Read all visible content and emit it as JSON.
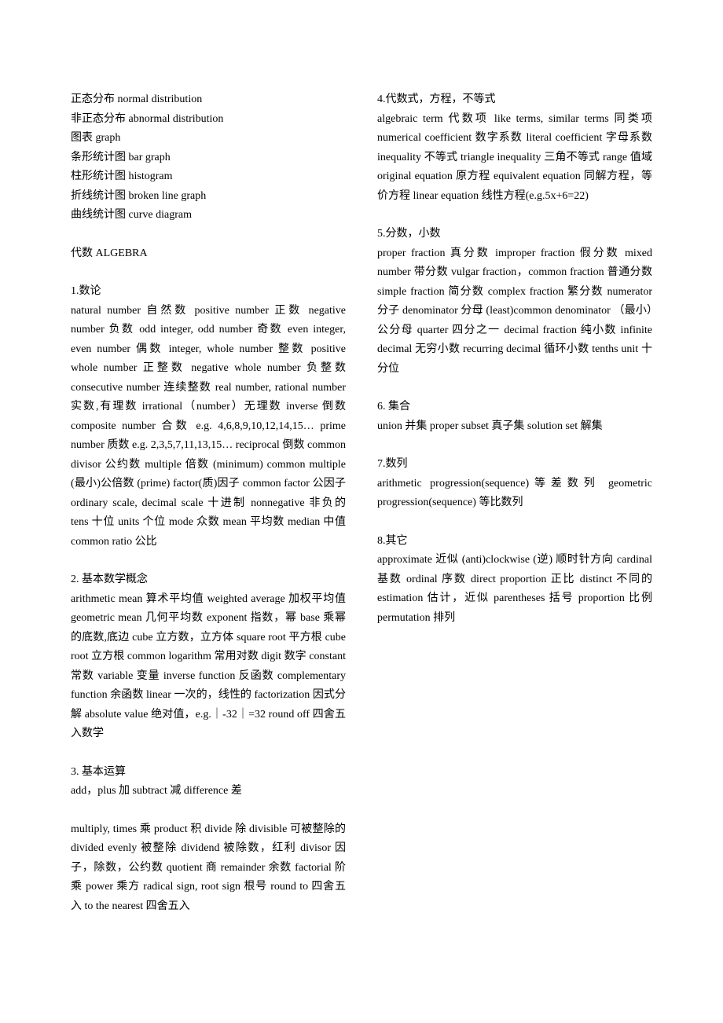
{
  "col1": {
    "stats_lines": [
      "正态分布 normal distribution",
      "非正态分布 abnormal distribution",
      "图表 graph",
      "条形统计图 bar graph",
      "柱形统计图 histogram",
      "折线统计图 broken line graph",
      "曲线统计图 curve diagram"
    ],
    "algebra_heading": "代数 ALGEBRA",
    "s1_heading": "1.数论",
    "s1_body": "natural number 自然数 positive number 正数 negative number 负数 odd integer, odd number 奇数 even integer, even number 偶数 integer, whole number 整数 positive whole number 正整数 negative whole number 负整数 consecutive number 连续整数 real number, rational number 实数,有理数 irrational（number）无理数 inverse 倒数 composite number 合数 e.g. 4,6,8,9,10,12,14,15… prime number 质数 e.g. 2,3,5,7,11,13,15… reciprocal 倒数 common divisor 公约数 multiple 倍数 (minimum) common multiple (最小)公倍数 (prime) factor(质)因子 common factor 公因子 ordinary scale, decimal scale 十进制 nonnegative 非负的 tens 十位 units 个位 mode 众数 mean 平均数 median 中值 common ratio 公比",
    "s2_heading": "2. 基本数学概念",
    "s2_body": "arithmetic mean 算术平均值 weighted average 加权平均值 geometric mean 几何平均数 exponent 指数，幂 base 乘幂的底数,底边 cube 立方数，立方体 square root 平方根 cube root 立方根 common logarithm 常用对数 digit 数字 constant 常数 variable 变量 inverse function 反函数 complementary function 余函数 linear 一次的，线性的 factorization 因式分解 absolute value 绝对值，e.g.｜-32｜=32 round off 四舍五入数学",
    "s3_heading": "3. 基本运算",
    "s3_body_a": "add，plus 加 subtract 减 difference 差",
    "s3_body_b": "multiply, times 乘 product 积 divide 除 divisible 可被整除的 divided evenly 被整除 dividend 被除数，红利 divisor 因子，除数，公约数 quotient 商 remainder 余数 factorial 阶乘 power 乘方 radical sign, root sign 根号 round to 四舍五入 to the nearest 四舍五入",
    "s4_heading": "4.代数式，方程，不等式",
    "s4_body": "algebraic term 代数项 like terms, similar terms 同类项 numerical coefficient 数字系数 literal coefficient 字母系数 inequality 不等式 triangle inequality 三角不等式 range 值域 original equation 原方程 equivalent equation 同解方程，等价方程 linear equation 线性方程(e.g.5x+6=22)",
    "s5_heading": "5.分数，小数",
    "s5_body": "proper fraction 真分数 improper fraction 假分数 mixed number 带分数 vulgar fraction，common fraction 普通分数 simple fraction 简分数 complex fraction 繁分数 numerator 分子 denominator 分母 (least)common denominator （最小）公分母 quarter 四分之一 decimal fraction 纯小数 infinite decimal 无穷小数 recurring decimal 循环小数 tenths unit 十分位",
    "s6_heading": "6. 集合",
    "s6_body": "union 并集 proper subset 真子集 solution set 解集",
    "s7_heading": "7.数列",
    "s7_body": "arithmetic progression(sequence)等差数列 geometric progression(sequence) 等比数列",
    "s8_heading": "8.其它",
    "s8_body": "approximate 近似 (anti)clockwise (逆) 顺时针方向 cardinal 基数 ordinal 序数 direct proportion 正比 distinct 不同的 estimation 估计，近似 parentheses 括号 proportion 比例 permutation 排列"
  }
}
